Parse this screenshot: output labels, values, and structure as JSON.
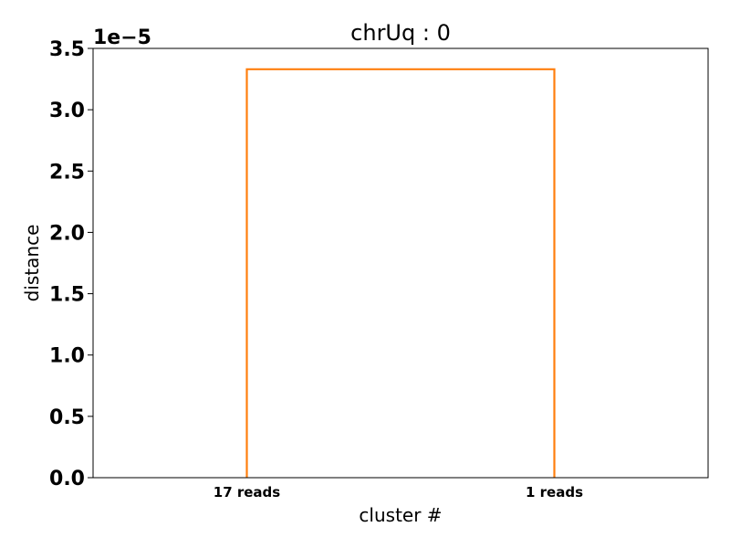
{
  "chart_data": {
    "type": "dendrogram",
    "title": "chrUq : 0",
    "xlabel": "cluster #",
    "ylabel": "distance",
    "y_offset_label": "1e−5",
    "ylim": [
      0,
      3.5
    ],
    "yticks": [
      0.0,
      0.5,
      1.0,
      1.5,
      2.0,
      2.5,
      3.0,
      3.5
    ],
    "ytick_labels": [
      "0.0",
      "0.5",
      "1.0",
      "1.5",
      "2.0",
      "2.5",
      "3.0",
      "3.5"
    ],
    "xlim": [
      0,
      20
    ],
    "leaves": [
      {
        "label": "17 reads",
        "x": 5
      },
      {
        "label": "1 reads",
        "x": 15
      }
    ],
    "links": [
      {
        "x": [
          5,
          5,
          15,
          15
        ],
        "y": [
          0,
          3.33,
          3.33,
          0
        ]
      }
    ],
    "link_color": "#ff7f0e",
    "grid": false
  }
}
